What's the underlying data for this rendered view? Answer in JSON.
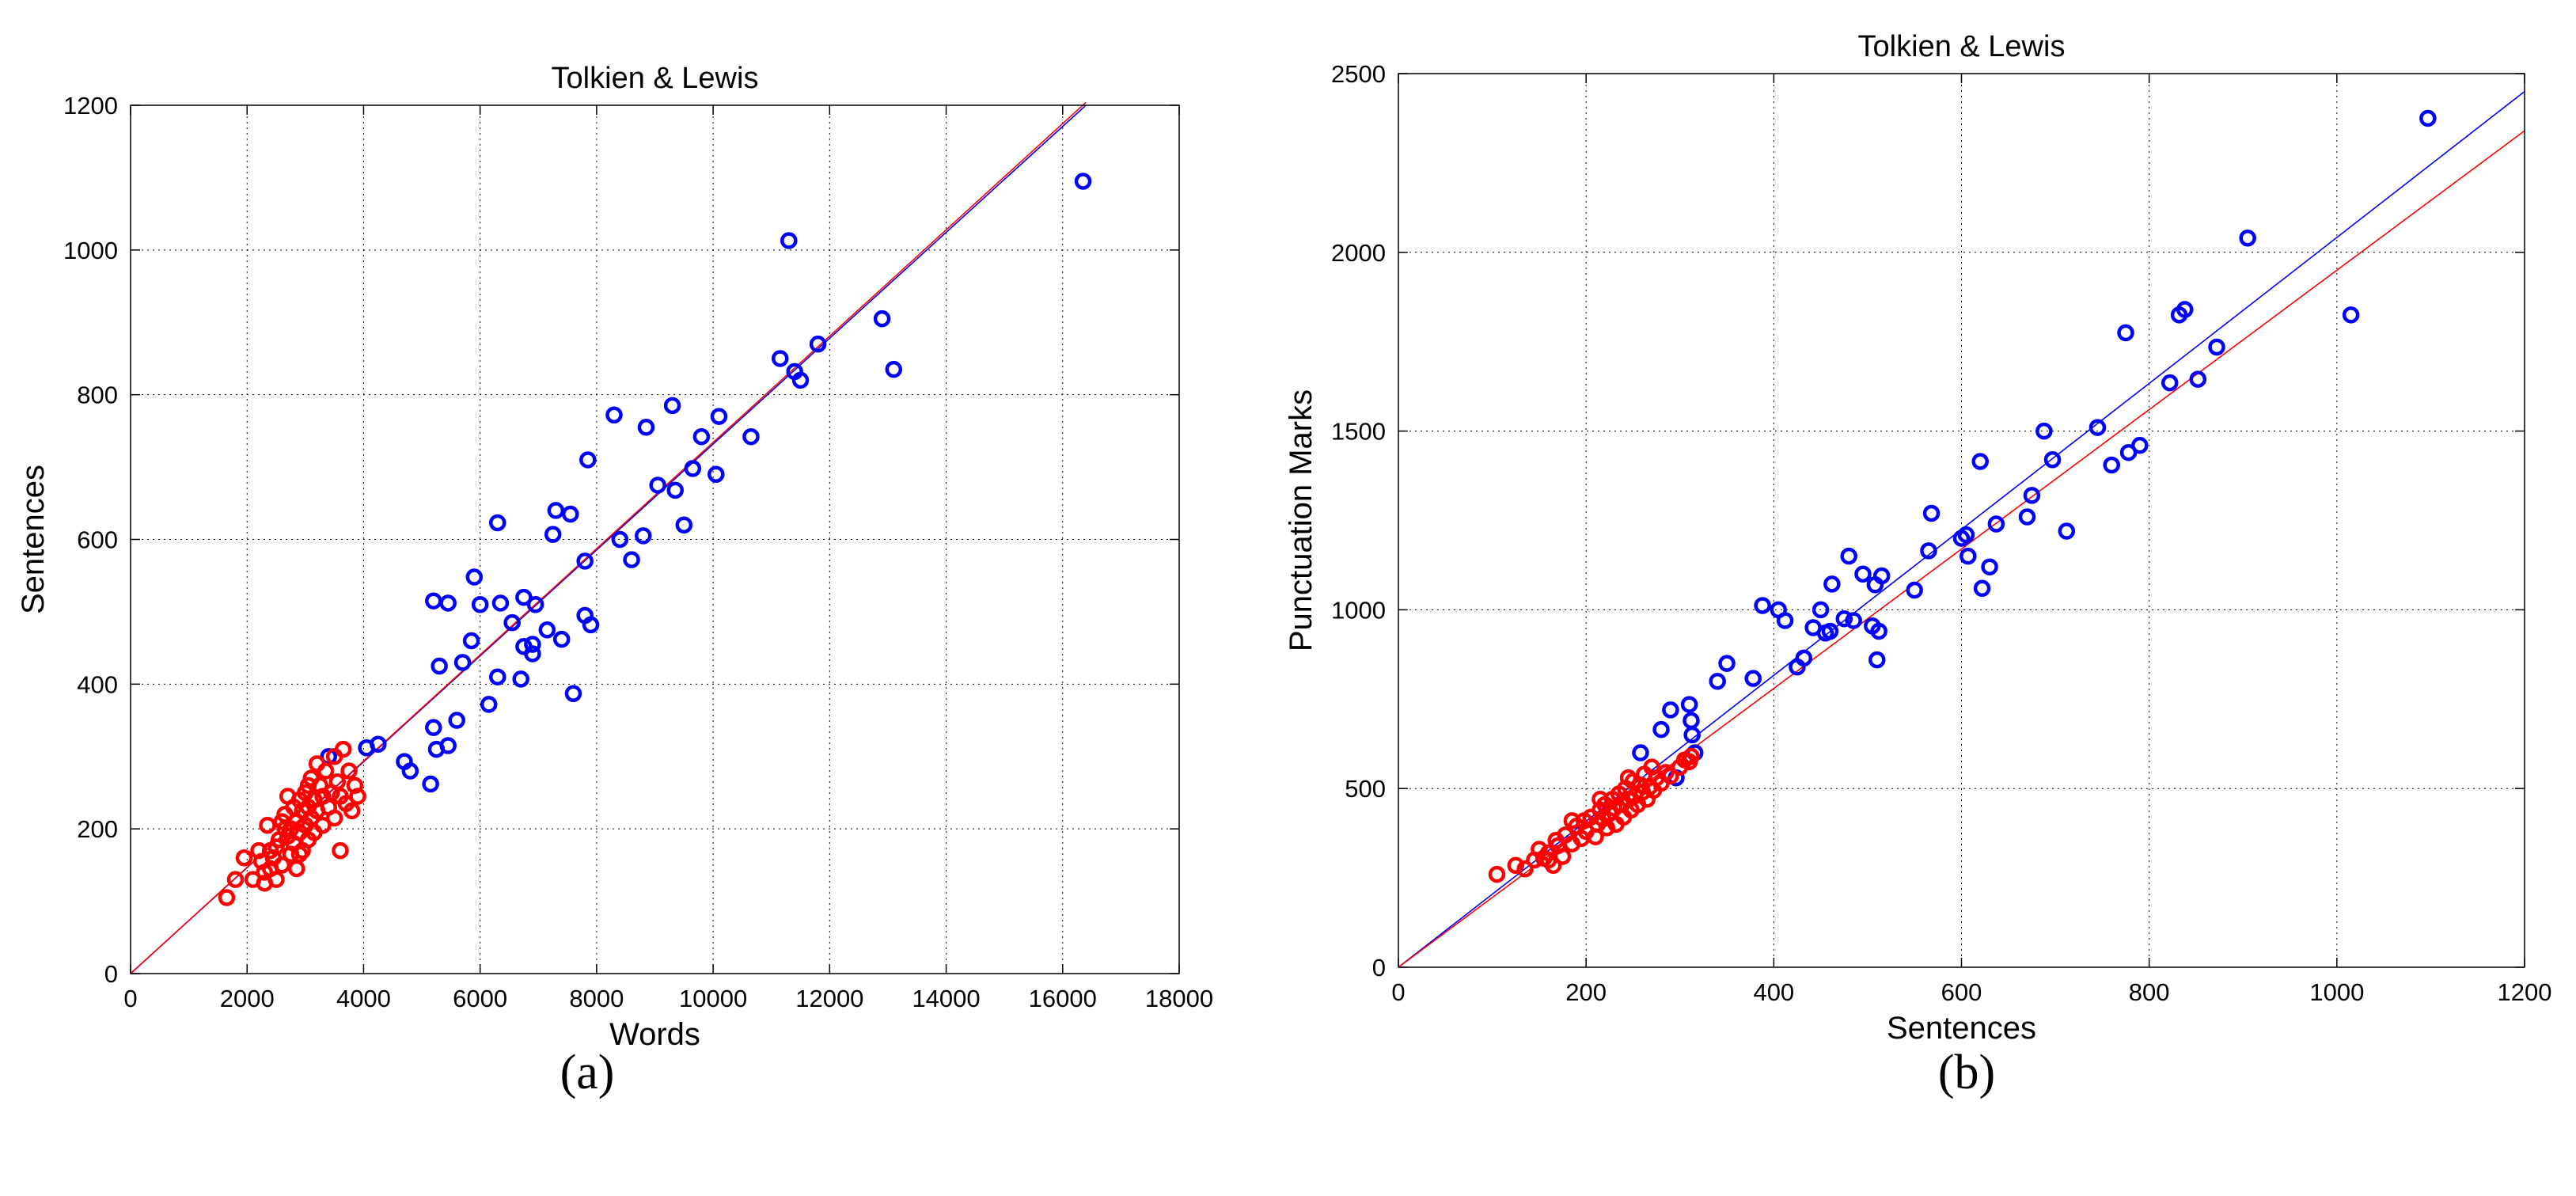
{
  "chart_data": [
    {
      "type": "scatter",
      "title": "Tolkien & Lewis",
      "xlabel": "Words",
      "ylabel": "Sentences",
      "xlim": [
        0,
        18000
      ],
      "ylim": [
        0,
        1200
      ],
      "xticks": [
        0,
        2000,
        4000,
        6000,
        8000,
        10000,
        12000,
        14000,
        16000,
        18000
      ],
      "yticks": [
        0,
        200,
        400,
        600,
        800,
        1000,
        1200
      ],
      "xtick_labels": [
        "0",
        "2000",
        "4000",
        "6000",
        "8000",
        "10000",
        "12000",
        "14000",
        "16000",
        "18000"
      ],
      "ytick_labels": [
        "0",
        "200",
        "400",
        "600",
        "800",
        "1000",
        "1200"
      ],
      "grid": true,
      "series": [
        {
          "color": "#0000ff",
          "marker": "circle-open",
          "points": [
            [
              3400,
              300
            ],
            [
              4050,
              312
            ],
            [
              4250,
              317
            ],
            [
              4700,
              293
            ],
            [
              4800,
              280
            ],
            [
              5150,
              262
            ],
            [
              5200,
              340
            ],
            [
              5250,
              310
            ],
            [
              5450,
              315
            ],
            [
              5600,
              350
            ],
            [
              5200,
              515
            ],
            [
              5450,
              512
            ],
            [
              5300,
              425
            ],
            [
              5700,
              430
            ],
            [
              5850,
              460
            ],
            [
              5900,
              548
            ],
            [
              6000,
              510
            ],
            [
              6150,
              372
            ],
            [
              6300,
              410
            ],
            [
              6300,
              623
            ],
            [
              6350,
              512
            ],
            [
              6550,
              485
            ],
            [
              6700,
              407
            ],
            [
              6750,
              520
            ],
            [
              6750,
              452
            ],
            [
              6900,
              442
            ],
            [
              6900,
              455
            ],
            [
              6950,
              510
            ],
            [
              7150,
              475
            ],
            [
              7250,
              607
            ],
            [
              7300,
              640
            ],
            [
              7400,
              462
            ],
            [
              7550,
              635
            ],
            [
              7600,
              387
            ],
            [
              7800,
              495
            ],
            [
              7800,
              570
            ],
            [
              7900,
              482
            ],
            [
              7850,
              710
            ],
            [
              8300,
              772
            ],
            [
              8400,
              600
            ],
            [
              8600,
              572
            ],
            [
              8800,
              605
            ],
            [
              8850,
              755
            ],
            [
              9050,
              675
            ],
            [
              9300,
              785
            ],
            [
              9350,
              668
            ],
            [
              9500,
              620
            ],
            [
              9650,
              698
            ],
            [
              9800,
              742
            ],
            [
              10050,
              690
            ],
            [
              10100,
              770
            ],
            [
              10650,
              742
            ],
            [
              11150,
              850
            ],
            [
              11300,
              1013
            ],
            [
              11400,
              832
            ],
            [
              11500,
              820
            ],
            [
              11800,
              870
            ],
            [
              12900,
              905
            ],
            [
              13100,
              835
            ],
            [
              16350,
              1095
            ]
          ]
        },
        {
          "color": "#ff0000",
          "marker": "circle-open",
          "points": [
            [
              1650,
              105
            ],
            [
              1800,
              130
            ],
            [
              1950,
              160
            ],
            [
              2100,
              130
            ],
            [
              2200,
              170
            ],
            [
              2250,
              155
            ],
            [
              2300,
              140
            ],
            [
              2300,
              125
            ],
            [
              2350,
              205
            ],
            [
              2400,
              170
            ],
            [
              2400,
              145
            ],
            [
              2450,
              160
            ],
            [
              2500,
              175
            ],
            [
              2500,
              130
            ],
            [
              2550,
              185
            ],
            [
              2600,
              210
            ],
            [
              2600,
              150
            ],
            [
              2650,
              220
            ],
            [
              2700,
              190
            ],
            [
              2700,
              245
            ],
            [
              2750,
              165
            ],
            [
              2750,
              200
            ],
            [
              2800,
              230
            ],
            [
              2800,
              180
            ],
            [
              2850,
              210
            ],
            [
              2850,
              145
            ],
            [
              2900,
              240
            ],
            [
              2900,
              195
            ],
            [
              2950,
              225
            ],
            [
              2950,
              170
            ],
            [
              3000,
              250
            ],
            [
              3000,
              205
            ],
            [
              3050,
              185
            ],
            [
              3050,
              230
            ],
            [
              3100,
              270
            ],
            [
              3100,
              215
            ],
            [
              3150,
              195
            ],
            [
              3150,
              240
            ],
            [
              3200,
              290
            ],
            [
              3200,
              225
            ],
            [
              3250,
              260
            ],
            [
              3300,
              205
            ],
            [
              3300,
              245
            ],
            [
              3350,
              280
            ],
            [
              3400,
              230
            ],
            [
              3450,
              250
            ],
            [
              3500,
              300
            ],
            [
              3500,
              215
            ],
            [
              3550,
              265
            ],
            [
              3600,
              245
            ],
            [
              3600,
              170
            ],
            [
              3650,
              310
            ],
            [
              3700,
              235
            ],
            [
              3750,
              280
            ],
            [
              3800,
              225
            ],
            [
              3850,
              260
            ],
            [
              3900,
              245
            ],
            [
              2900,
              165
            ],
            [
              3050,
              260
            ],
            [
              2650,
              200
            ]
          ]
        }
      ],
      "fit_lines": [
        {
          "color": "#0000ff",
          "x": [
            0,
            16400
          ],
          "y": [
            0,
            1200
          ]
        },
        {
          "color": "#ff0000",
          "x": [
            0,
            16400
          ],
          "y": [
            0,
            1204
          ]
        }
      ]
    },
    {
      "type": "scatter",
      "title": "Tolkien & Lewis",
      "xlabel": "Sentences",
      "ylabel": "Punctuation Marks",
      "xlim": [
        0,
        1200
      ],
      "ylim": [
        0,
        2500
      ],
      "xticks": [
        0,
        200,
        400,
        600,
        800,
        1000,
        1200
      ],
      "yticks": [
        0,
        500,
        1000,
        1500,
        2000,
        2500
      ],
      "xtick_labels": [
        "0",
        "200",
        "400",
        "600",
        "800",
        "1000",
        "1200"
      ],
      "ytick_labels": [
        "0",
        "500",
        "1000",
        "1500",
        "2000",
        "2500"
      ],
      "grid": true,
      "series": [
        {
          "color": "#0000ff",
          "marker": "circle-open",
          "points": [
            [
              258,
              600
            ],
            [
              280,
              665
            ],
            [
              290,
              720
            ],
            [
              296,
              530
            ],
            [
              310,
              735
            ],
            [
              312,
              690
            ],
            [
              313,
              650
            ],
            [
              316,
              600
            ],
            [
              340,
              800
            ],
            [
              350,
              850
            ],
            [
              378,
              808
            ],
            [
              388,
              1012
            ],
            [
              405,
              1000
            ],
            [
              412,
              970
            ],
            [
              425,
              840
            ],
            [
              432,
              865
            ],
            [
              442,
              950
            ],
            [
              450,
              1000
            ],
            [
              455,
              935
            ],
            [
              460,
              940
            ],
            [
              462,
              1072
            ],
            [
              475,
              975
            ],
            [
              480,
              1150
            ],
            [
              485,
              970
            ],
            [
              495,
              1100
            ],
            [
              505,
              955
            ],
            [
              508,
              1070
            ],
            [
              510,
              860
            ],
            [
              512,
              940
            ],
            [
              515,
              1095
            ],
            [
              550,
              1055
            ],
            [
              565,
              1165
            ],
            [
              568,
              1270
            ],
            [
              600,
              1200
            ],
            [
              605,
              1210
            ],
            [
              607,
              1150
            ],
            [
              620,
              1415
            ],
            [
              622,
              1060
            ],
            [
              630,
              1120
            ],
            [
              637,
              1240
            ],
            [
              670,
              1260
            ],
            [
              675,
              1320
            ],
            [
              688,
              1500
            ],
            [
              697,
              1420
            ],
            [
              712,
              1220
            ],
            [
              745,
              1510
            ],
            [
              760,
              1405
            ],
            [
              775,
              1775
            ],
            [
              778,
              1440
            ],
            [
              790,
              1460
            ],
            [
              822,
              1635
            ],
            [
              832,
              1825
            ],
            [
              838,
              1840
            ],
            [
              852,
              1645
            ],
            [
              872,
              1735
            ],
            [
              905,
              2040
            ],
            [
              1015,
              1825
            ],
            [
              1097,
              2375
            ]
          ]
        },
        {
          "color": "#ff0000",
          "marker": "circle-open",
          "points": [
            [
              105,
              260
            ],
            [
              125,
              285
            ],
            [
              135,
              275
            ],
            [
              145,
              300
            ],
            [
              150,
              330
            ],
            [
              155,
              305
            ],
            [
              160,
              320
            ],
            [
              165,
              285
            ],
            [
              168,
              355
            ],
            [
              170,
              340
            ],
            [
              175,
              310
            ],
            [
              178,
              370
            ],
            [
              185,
              345
            ],
            [
              190,
              395
            ],
            [
              195,
              360
            ],
            [
              198,
              410
            ],
            [
              200,
              380
            ],
            [
              205,
              420
            ],
            [
              210,
              365
            ],
            [
              212,
              400
            ],
            [
              215,
              440
            ],
            [
              218,
              415
            ],
            [
              220,
              455
            ],
            [
              222,
              390
            ],
            [
              225,
              430
            ],
            [
              228,
              470
            ],
            [
              230,
              445
            ],
            [
              232,
              400
            ],
            [
              235,
              485
            ],
            [
              238,
              455
            ],
            [
              240,
              420
            ],
            [
              242,
              500
            ],
            [
              245,
              470
            ],
            [
              248,
              440
            ],
            [
              250,
              520
            ],
            [
              252,
              480
            ],
            [
              255,
              455
            ],
            [
              258,
              510
            ],
            [
              260,
              490
            ],
            [
              262,
              540
            ],
            [
              265,
              470
            ],
            [
              268,
              505
            ],
            [
              270,
              560
            ],
            [
              272,
              495
            ],
            [
              275,
              530
            ],
            [
              280,
              515
            ],
            [
              285,
              545
            ],
            [
              290,
              535
            ],
            [
              300,
              560
            ],
            [
              305,
              580
            ],
            [
              310,
              575
            ],
            [
              312,
              590
            ],
            [
              185,
              410
            ],
            [
              215,
              470
            ],
            [
              245,
              530
            ],
            [
              160,
              300
            ]
          ]
        }
      ],
      "fit_lines": [
        {
          "color": "#0000ff",
          "x": [
            0,
            1200
          ],
          "y": [
            0,
            2450
          ]
        },
        {
          "color": "#ff0000",
          "x": [
            0,
            1200
          ],
          "y": [
            0,
            2340
          ]
        }
      ]
    }
  ],
  "captions": {
    "a": "(a)",
    "b": "(b)"
  }
}
